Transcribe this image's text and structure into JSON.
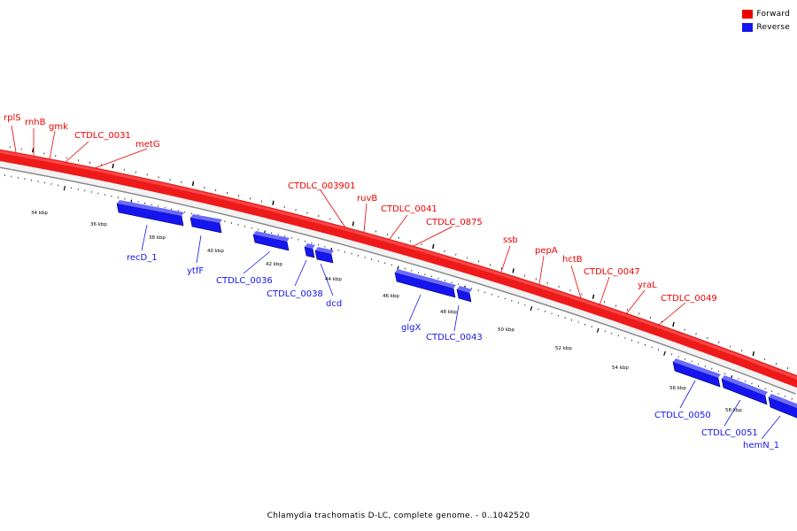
{
  "legend": {
    "forward": {
      "label": "Forward",
      "color": "#ee0000"
    },
    "reverse": {
      "label": "Reverse",
      "color": "#1515f0"
    }
  },
  "caption": "Chlamydia trachomatis D-LC, complete genome. - 0..1042520",
  "backbone_color": "#ee1a1a",
  "forward_genes": [
    "rplS",
    "rnhB",
    "gmk",
    "CTDLC_0031",
    "metG",
    "CTDLC_003901",
    "ruvB",
    "CTDLC_0041",
    "CTDLC_0875",
    "ssb",
    "pepA",
    "hctB",
    "CTDLC_0047",
    "yraL",
    "CTDLC_0049"
  ],
  "reverse_genes": [
    "recD_1",
    "ytfF",
    "CTDLC_0036",
    "CTDLC_0038",
    "dcd",
    "glgX",
    "CTDLC_0043",
    "CTDLC_0050",
    "CTDLC_0051",
    "hemN_1"
  ],
  "scale_labels": [
    "34 kbp",
    "36 kbp",
    "38 kbp",
    "40 kbp",
    "42 kbp",
    "44 kbp",
    "46 kbp",
    "48 kbp",
    "50 kbp",
    "52 kbp",
    "54 kbp",
    "56 kbp",
    "58 kbp"
  ]
}
